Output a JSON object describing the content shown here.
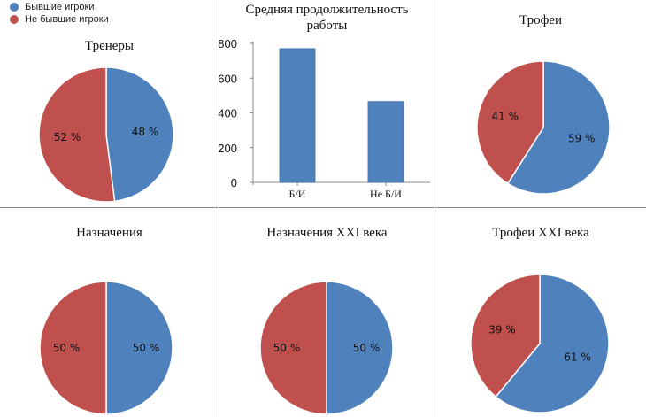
{
  "colors": {
    "former": "#4f81bd",
    "nonformer": "#c0504d"
  },
  "legend": {
    "items": [
      {
        "label": "Бывшие игроки",
        "color": "#4f81bd"
      },
      {
        "label": "Не бывшие игроки",
        "color": "#c0504d"
      }
    ]
  },
  "chart_data": [
    {
      "id": "coaches",
      "type": "pie",
      "title": "Тренеры",
      "slices": [
        {
          "name": "Бывшие игроки",
          "value": 48,
          "label": "48 %"
        },
        {
          "name": "Не бывшие игроки",
          "value": 52,
          "label": "52 %"
        }
      ]
    },
    {
      "id": "tenure",
      "type": "bar",
      "title": "Средняя продолжительность работы",
      "categories": [
        "Б/И",
        "Не Б/И"
      ],
      "values": [
        770,
        465
      ],
      "ylim": [
        0,
        800
      ],
      "yticks": [
        0,
        200,
        400,
        600,
        800
      ]
    },
    {
      "id": "trophies",
      "type": "pie",
      "title": "Трофеи",
      "slices": [
        {
          "name": "Бывшие игроки",
          "value": 59,
          "label": "59 %"
        },
        {
          "name": "Не бывшие игроки",
          "value": 41,
          "label": "41 %"
        }
      ]
    },
    {
      "id": "appointments",
      "type": "pie",
      "title": "Назначения",
      "slices": [
        {
          "name": "Бывшие игроки",
          "value": 50,
          "label": "50 %"
        },
        {
          "name": "Не бывшие игроки",
          "value": 50,
          "label": "50 %"
        }
      ]
    },
    {
      "id": "appointments21",
      "type": "pie",
      "title": "Назначения XXI века",
      "slices": [
        {
          "name": "Бывшие игроки",
          "value": 50,
          "label": "50 %"
        },
        {
          "name": "Не бывшие игроки",
          "value": 50,
          "label": "50 %"
        }
      ]
    },
    {
      "id": "trophies21",
      "type": "pie",
      "title": "Трофеи XXI века",
      "slices": [
        {
          "name": "Бывшие игроки",
          "value": 61,
          "label": "61 %"
        },
        {
          "name": "Не бывшие игроки",
          "value": 39,
          "label": "39 %"
        }
      ]
    }
  ]
}
